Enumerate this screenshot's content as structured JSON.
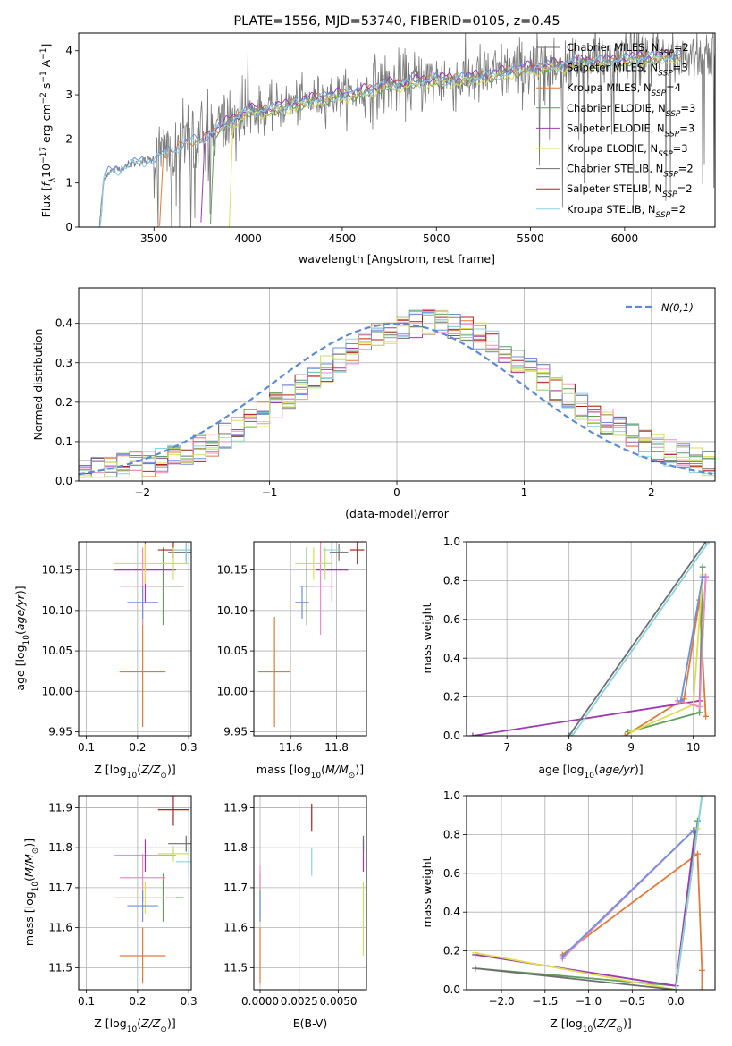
{
  "palette": [
    "#e07b39",
    "#5e9e5e",
    "#9e3bb0",
    "#dede50",
    "#6e6e6e",
    "#b32020",
    "#8ad4e0",
    "#f08cc0",
    "#6d8fe0",
    "#c4e06a"
  ],
  "chart_data": [
    {
      "id": "spectrum",
      "type": "line",
      "title": "PLATE=1556, MJD=53740, FIBERID=0105, z=0.45",
      "xlabel": "wavelength [Angstrom, rest frame]",
      "ylabel_main": "Flux [",
      "ylabel_lambda": "λ",
      "ylabel_after_lambda": "10",
      "ylabel_exp1": "−17",
      "ylabel_unit": " erg cm",
      "ylabel_exp2": "−2",
      "ylabel_unit2": " s",
      "ylabel_exp3": "−1",
      "ylabel_unit3": " A",
      "ylabel_exp4": "−1",
      "ylabel_close": "]",
      "xlim": [
        3100,
        6480
      ],
      "ylim": [
        0,
        4.4
      ],
      "xticks": [
        3500,
        4000,
        4500,
        5000,
        5500,
        6000
      ],
      "yticks": [
        0,
        1,
        2,
        3,
        4
      ],
      "grid": false,
      "legend_position": "top-right",
      "series": [
        {
          "name": "Chabrier MILES",
          "nssp": "2"
        },
        {
          "name": "Salpeter MILES",
          "nssp": "3"
        },
        {
          "name": "Kroupa MILES",
          "nssp": "4"
        },
        {
          "name": "Chabrier ELODIE",
          "nssp": "3"
        },
        {
          "name": "Salpeter ELODIE",
          "nssp": "3"
        },
        {
          "name": "Kroupa ELODIE",
          "nssp": "3"
        },
        {
          "name": "Chabrier STELIB",
          "nssp": "2"
        },
        {
          "name": "Salpeter STELIB",
          "nssp": "2"
        },
        {
          "name": "Kroupa STELIB",
          "nssp": "2"
        }
      ],
      "continuum": {
        "x": [
          3210,
          3230,
          3260,
          3300,
          3350,
          3400,
          3450,
          3500,
          3550,
          3600,
          3650,
          3700,
          3750,
          3800,
          3850,
          3900,
          3950,
          4000,
          4100,
          4200,
          4300,
          4400,
          4500,
          4600,
          4700,
          4800,
          4900,
          5000,
          5100,
          5200,
          5300,
          5400,
          5500,
          5600,
          5700,
          5800,
          5900,
          6000,
          6100,
          6200,
          6300
        ],
        "y": [
          0.0,
          1.05,
          1.25,
          1.3,
          1.4,
          1.45,
          1.5,
          1.55,
          1.65,
          1.75,
          1.85,
          1.95,
          2.0,
          2.1,
          2.25,
          2.4,
          2.5,
          2.65,
          2.65,
          2.75,
          2.85,
          2.95,
          3.0,
          3.05,
          3.2,
          3.25,
          3.3,
          3.35,
          3.35,
          3.4,
          3.45,
          3.55,
          3.6,
          3.65,
          3.7,
          3.75,
          3.75,
          3.8,
          3.85,
          3.85,
          3.9
        ]
      }
    },
    {
      "id": "residuals",
      "type": "line",
      "xlabel": "(data-model)/error",
      "ylabel": "Normed distribution",
      "xlim": [
        -2.5,
        2.5
      ],
      "ylim": [
        0,
        0.49
      ],
      "xticks": [
        -2,
        -1,
        0,
        1,
        2
      ],
      "yticks": [
        0.0,
        0.1,
        0.2,
        0.3,
        0.4
      ],
      "grid": true,
      "legend_label": "N(0,1)",
      "legend_position": "top-right"
    },
    {
      "id": "age-z",
      "type": "scatter",
      "xlabel_pre": "Z [log",
      "xlabel_sub": "10",
      "xlabel_post": "(Z/Z",
      "xlabel_sun": "⊙",
      "xlabel_close": ")]",
      "ylabel_pre": "age  [log",
      "ylabel_sub": "10",
      "ylabel_post": "(age/yr)]",
      "xlim": [
        0.085,
        0.305
      ],
      "ylim": [
        9.945,
        10.185
      ],
      "xticks": [
        0.1,
        0.2,
        0.3
      ],
      "yticks": [
        9.95,
        10.0,
        10.05,
        10.1,
        10.15
      ],
      "grid": true,
      "points": [
        {
          "x": 0.21,
          "y": 10.024,
          "xerr": 0.045,
          "yerr": 0.068,
          "c": 0
        },
        {
          "x": 0.25,
          "y": 10.13,
          "xerr": 0.04,
          "yerr": 0.048,
          "c": 1
        },
        {
          "x": 0.215,
          "y": 10.15,
          "xerr": 0.06,
          "yerr": 0.04,
          "c": 2
        },
        {
          "x": 0.215,
          "y": 10.158,
          "xerr": 0.06,
          "yerr": 0.025,
          "c": 3
        },
        {
          "x": 0.295,
          "y": 10.172,
          "xerr": 0.035,
          "yerr": 0.01,
          "c": 4
        },
        {
          "x": 0.27,
          "y": 10.175,
          "xerr": 0.03,
          "yerr": 0.01,
          "c": 5
        },
        {
          "x": 0.295,
          "y": 10.175,
          "xerr": 0.025,
          "yerr": 0.018,
          "c": 6
        },
        {
          "x": 0.21,
          "y": 10.13,
          "xerr": 0.045,
          "yerr": 0.048,
          "c": 7
        },
        {
          "x": 0.21,
          "y": 10.11,
          "xerr": 0.03,
          "yerr": 0.02,
          "c": 8
        },
        {
          "x": 0.27,
          "y": 10.158,
          "xerr": 0.03,
          "yerr": 0.02,
          "c": 9
        }
      ]
    },
    {
      "id": "age-mass",
      "type": "scatter",
      "xlabel_pre": "mass [log",
      "xlabel_sub": "10",
      "xlabel_post": "(M/M",
      "xlabel_sun": "⊙",
      "xlabel_close": ")]",
      "xlim": [
        11.44,
        11.93
      ],
      "ylim": [
        9.945,
        10.185
      ],
      "xticks": [
        11.6,
        11.8
      ],
      "yticks": [
        9.95,
        10.0,
        10.05,
        10.1,
        10.15
      ],
      "grid": true,
      "points": [
        {
          "x": 11.53,
          "y": 10.024,
          "xerr": 0.07,
          "yerr": 0.068,
          "c": 0
        },
        {
          "x": 11.67,
          "y": 10.13,
          "xerr": 0.03,
          "yerr": 0.048,
          "c": 1
        },
        {
          "x": 11.78,
          "y": 10.15,
          "xerr": 0.07,
          "yerr": 0.04,
          "c": 2
        },
        {
          "x": 11.7,
          "y": 10.158,
          "xerr": 0.08,
          "yerr": 0.02,
          "c": 3
        },
        {
          "x": 11.81,
          "y": 10.172,
          "xerr": 0.04,
          "yerr": 0.01,
          "c": 4
        },
        {
          "x": 11.89,
          "y": 10.175,
          "xerr": 0.03,
          "yerr": 0.018,
          "c": 5
        },
        {
          "x": 11.78,
          "y": 10.175,
          "xerr": 0.04,
          "yerr": 0.01,
          "c": 6
        },
        {
          "x": 11.73,
          "y": 10.13,
          "xerr": 0.06,
          "yerr": 0.06,
          "c": 7
        },
        {
          "x": 11.65,
          "y": 10.11,
          "xerr": 0.03,
          "yerr": 0.02,
          "c": 8
        },
        {
          "x": 11.75,
          "y": 10.158,
          "xerr": 0.03,
          "yerr": 0.02,
          "c": 9
        }
      ]
    },
    {
      "id": "massweight-age",
      "type": "line",
      "xlabel_pre": "age  [log",
      "xlabel_sub": "10",
      "xlabel_post": "(age/yr)]",
      "ylabel": "mass weight",
      "xlim": [
        6.35,
        10.35
      ],
      "ylim": [
        0,
        1
      ],
      "xticks": [
        7,
        8,
        9,
        10
      ],
      "yticks": [
        0.0,
        0.2,
        0.4,
        0.6,
        0.8,
        1.0
      ],
      "grid": true,
      "series": [
        {
          "c": 0,
          "x": [
            8.9,
            9.85,
            10.1,
            10.2
          ],
          "y": [
            0.0,
            0.19,
            0.7,
            0.1
          ]
        },
        {
          "c": 1,
          "x": [
            8.95,
            10.1,
            10.15
          ],
          "y": [
            0.02,
            0.12,
            0.87
          ]
        },
        {
          "c": 2,
          "x": [
            6.45,
            10.1,
            10.2
          ],
          "y": [
            0.0,
            0.18,
            0.82
          ]
        },
        {
          "c": 3,
          "x": [
            9.0,
            10.0,
            10.15
          ],
          "y": [
            0.02,
            0.16,
            0.83
          ]
        },
        {
          "c": 4,
          "x": [
            8.0,
            10.2
          ],
          "y": [
            0.0,
            1.0
          ]
        },
        {
          "c": 6,
          "x": [
            8.05,
            10.25
          ],
          "y": [
            0.0,
            1.0
          ]
        },
        {
          "c": 7,
          "x": [
            9.75,
            10.1,
            10.2
          ],
          "y": [
            0.18,
            0.15,
            0.82
          ]
        },
        {
          "c": 8,
          "x": [
            9.8,
            10.15
          ],
          "y": [
            0.18,
            0.82
          ]
        }
      ]
    },
    {
      "id": "mass-z",
      "type": "scatter",
      "xlabel_pre": "Z [log",
      "xlabel_sub": "10",
      "xlabel_post": "(Z/Z",
      "xlabel_sun": "⊙",
      "xlabel_close": ")]",
      "ylabel_pre": "mass [log",
      "ylabel_sub": "10",
      "ylabel_post": "(M/M",
      "ylabel_sun": "⊙",
      "ylabel_close": ")]",
      "xlim": [
        0.085,
        0.305
      ],
      "ylim": [
        11.445,
        11.93
      ],
      "xticks": [
        0.1,
        0.2,
        0.3
      ],
      "yticks": [
        11.5,
        11.6,
        11.7,
        11.8,
        11.9
      ],
      "grid": true,
      "points": [
        {
          "x": 0.21,
          "y": 11.53,
          "xerr": 0.045,
          "yerr": 0.07,
          "c": 0
        },
        {
          "x": 0.25,
          "y": 11.675,
          "xerr": 0.04,
          "yerr": 0.06,
          "c": 1
        },
        {
          "x": 0.215,
          "y": 11.78,
          "xerr": 0.06,
          "yerr": 0.04,
          "c": 2
        },
        {
          "x": 0.215,
          "y": 11.675,
          "xerr": 0.06,
          "yerr": 0.04,
          "c": 3
        },
        {
          "x": 0.295,
          "y": 11.81,
          "xerr": 0.035,
          "yerr": 0.02,
          "c": 4
        },
        {
          "x": 0.27,
          "y": 11.895,
          "xerr": 0.03,
          "yerr": 0.04,
          "c": 5
        },
        {
          "x": 0.3,
          "y": 11.765,
          "xerr": 0.025,
          "yerr": 0.035,
          "c": 6
        },
        {
          "x": 0.21,
          "y": 11.725,
          "xerr": 0.045,
          "yerr": 0.06,
          "c": 7
        },
        {
          "x": 0.21,
          "y": 11.655,
          "xerr": 0.03,
          "yerr": 0.04,
          "c": 8
        },
        {
          "x": 0.27,
          "y": 11.785,
          "xerr": 0.03,
          "yerr": 0.02,
          "c": 9
        }
      ]
    },
    {
      "id": "mass-ebv",
      "type": "scatter",
      "xlabel": "E(B-V)",
      "xlim": [
        -0.0004,
        0.0068
      ],
      "ylim": [
        11.445,
        11.93
      ],
      "xticks": [
        0.0,
        0.0025,
        0.005
      ],
      "xticklabels": [
        "0.0000",
        "0.0025",
        "0.0050"
      ],
      "yticks": [
        11.5,
        11.6,
        11.7,
        11.8,
        11.9
      ],
      "grid": true,
      "points": [
        {
          "x": 0.0,
          "y": 11.53,
          "yerr": 0.07,
          "c": 0
        },
        {
          "x": 0.0,
          "y": 11.675,
          "yerr": 0.06,
          "c": 1
        },
        {
          "x": 0.0066,
          "y": 11.78,
          "yerr": 0.04,
          "c": 2
        },
        {
          "x": 0.0066,
          "y": 11.675,
          "yerr": 0.04,
          "c": 3
        },
        {
          "x": 0.0066,
          "y": 11.81,
          "yerr": 0.02,
          "c": 4
        },
        {
          "x": 0.0033,
          "y": 11.875,
          "yerr": 0.035,
          "c": 5
        },
        {
          "x": 0.0033,
          "y": 11.765,
          "yerr": 0.035,
          "c": 6
        },
        {
          "x": 0.0,
          "y": 11.725,
          "yerr": 0.03,
          "c": 7
        },
        {
          "x": 0.0,
          "y": 11.655,
          "yerr": 0.03,
          "c": 8
        },
        {
          "x": 0.0066,
          "y": 11.62,
          "yerr": 0.09,
          "c": 9
        }
      ]
    },
    {
      "id": "massweight-z",
      "type": "line",
      "xlabel_pre": "Z [log",
      "xlabel_sub": "10",
      "xlabel_post": "(Z/Z",
      "xlabel_sun": "⊙",
      "xlabel_close": ")]",
      "ylabel": "mass weight",
      "xlim": [
        -2.4,
        0.45
      ],
      "ylim": [
        0,
        1
      ],
      "xticks": [
        -2.0,
        -1.5,
        -1.0,
        -0.5,
        0.0
      ],
      "xticklabels": [
        "−2.0",
        "−1.5",
        "−1.0",
        "−0.5",
        "0.0"
      ],
      "yticks": [
        0.0,
        0.2,
        0.4,
        0.6,
        0.8,
        1.0
      ],
      "grid": true,
      "series": [
        {
          "c": 0,
          "x": [
            -1.3,
            0.25,
            0.3,
            0.3
          ],
          "y": [
            0.18,
            0.7,
            0.1,
            0.0
          ]
        },
        {
          "c": 1,
          "x": [
            -2.3,
            0.0,
            0.25
          ],
          "y": [
            0.11,
            0.02,
            0.87
          ]
        },
        {
          "c": 2,
          "x": [
            -2.3,
            0.0,
            0.22
          ],
          "y": [
            0.18,
            0.02,
            0.82
          ]
        },
        {
          "c": 3,
          "x": [
            -2.3,
            0.0,
            0.25
          ],
          "y": [
            0.19,
            0.0,
            0.83
          ]
        },
        {
          "c": 4,
          "x": [
            -2.3,
            0.0,
            0.3
          ],
          "y": [
            0.11,
            0.0,
            1.0
          ]
        },
        {
          "c": 6,
          "x": [
            0.0,
            0.3
          ],
          "y": [
            0.0,
            1.0
          ]
        },
        {
          "c": 7,
          "x": [
            -1.3,
            0.2
          ],
          "y": [
            0.16,
            0.82
          ]
        },
        {
          "c": 8,
          "x": [
            -1.3,
            0.2
          ],
          "y": [
            0.17,
            0.82
          ]
        }
      ]
    }
  ]
}
